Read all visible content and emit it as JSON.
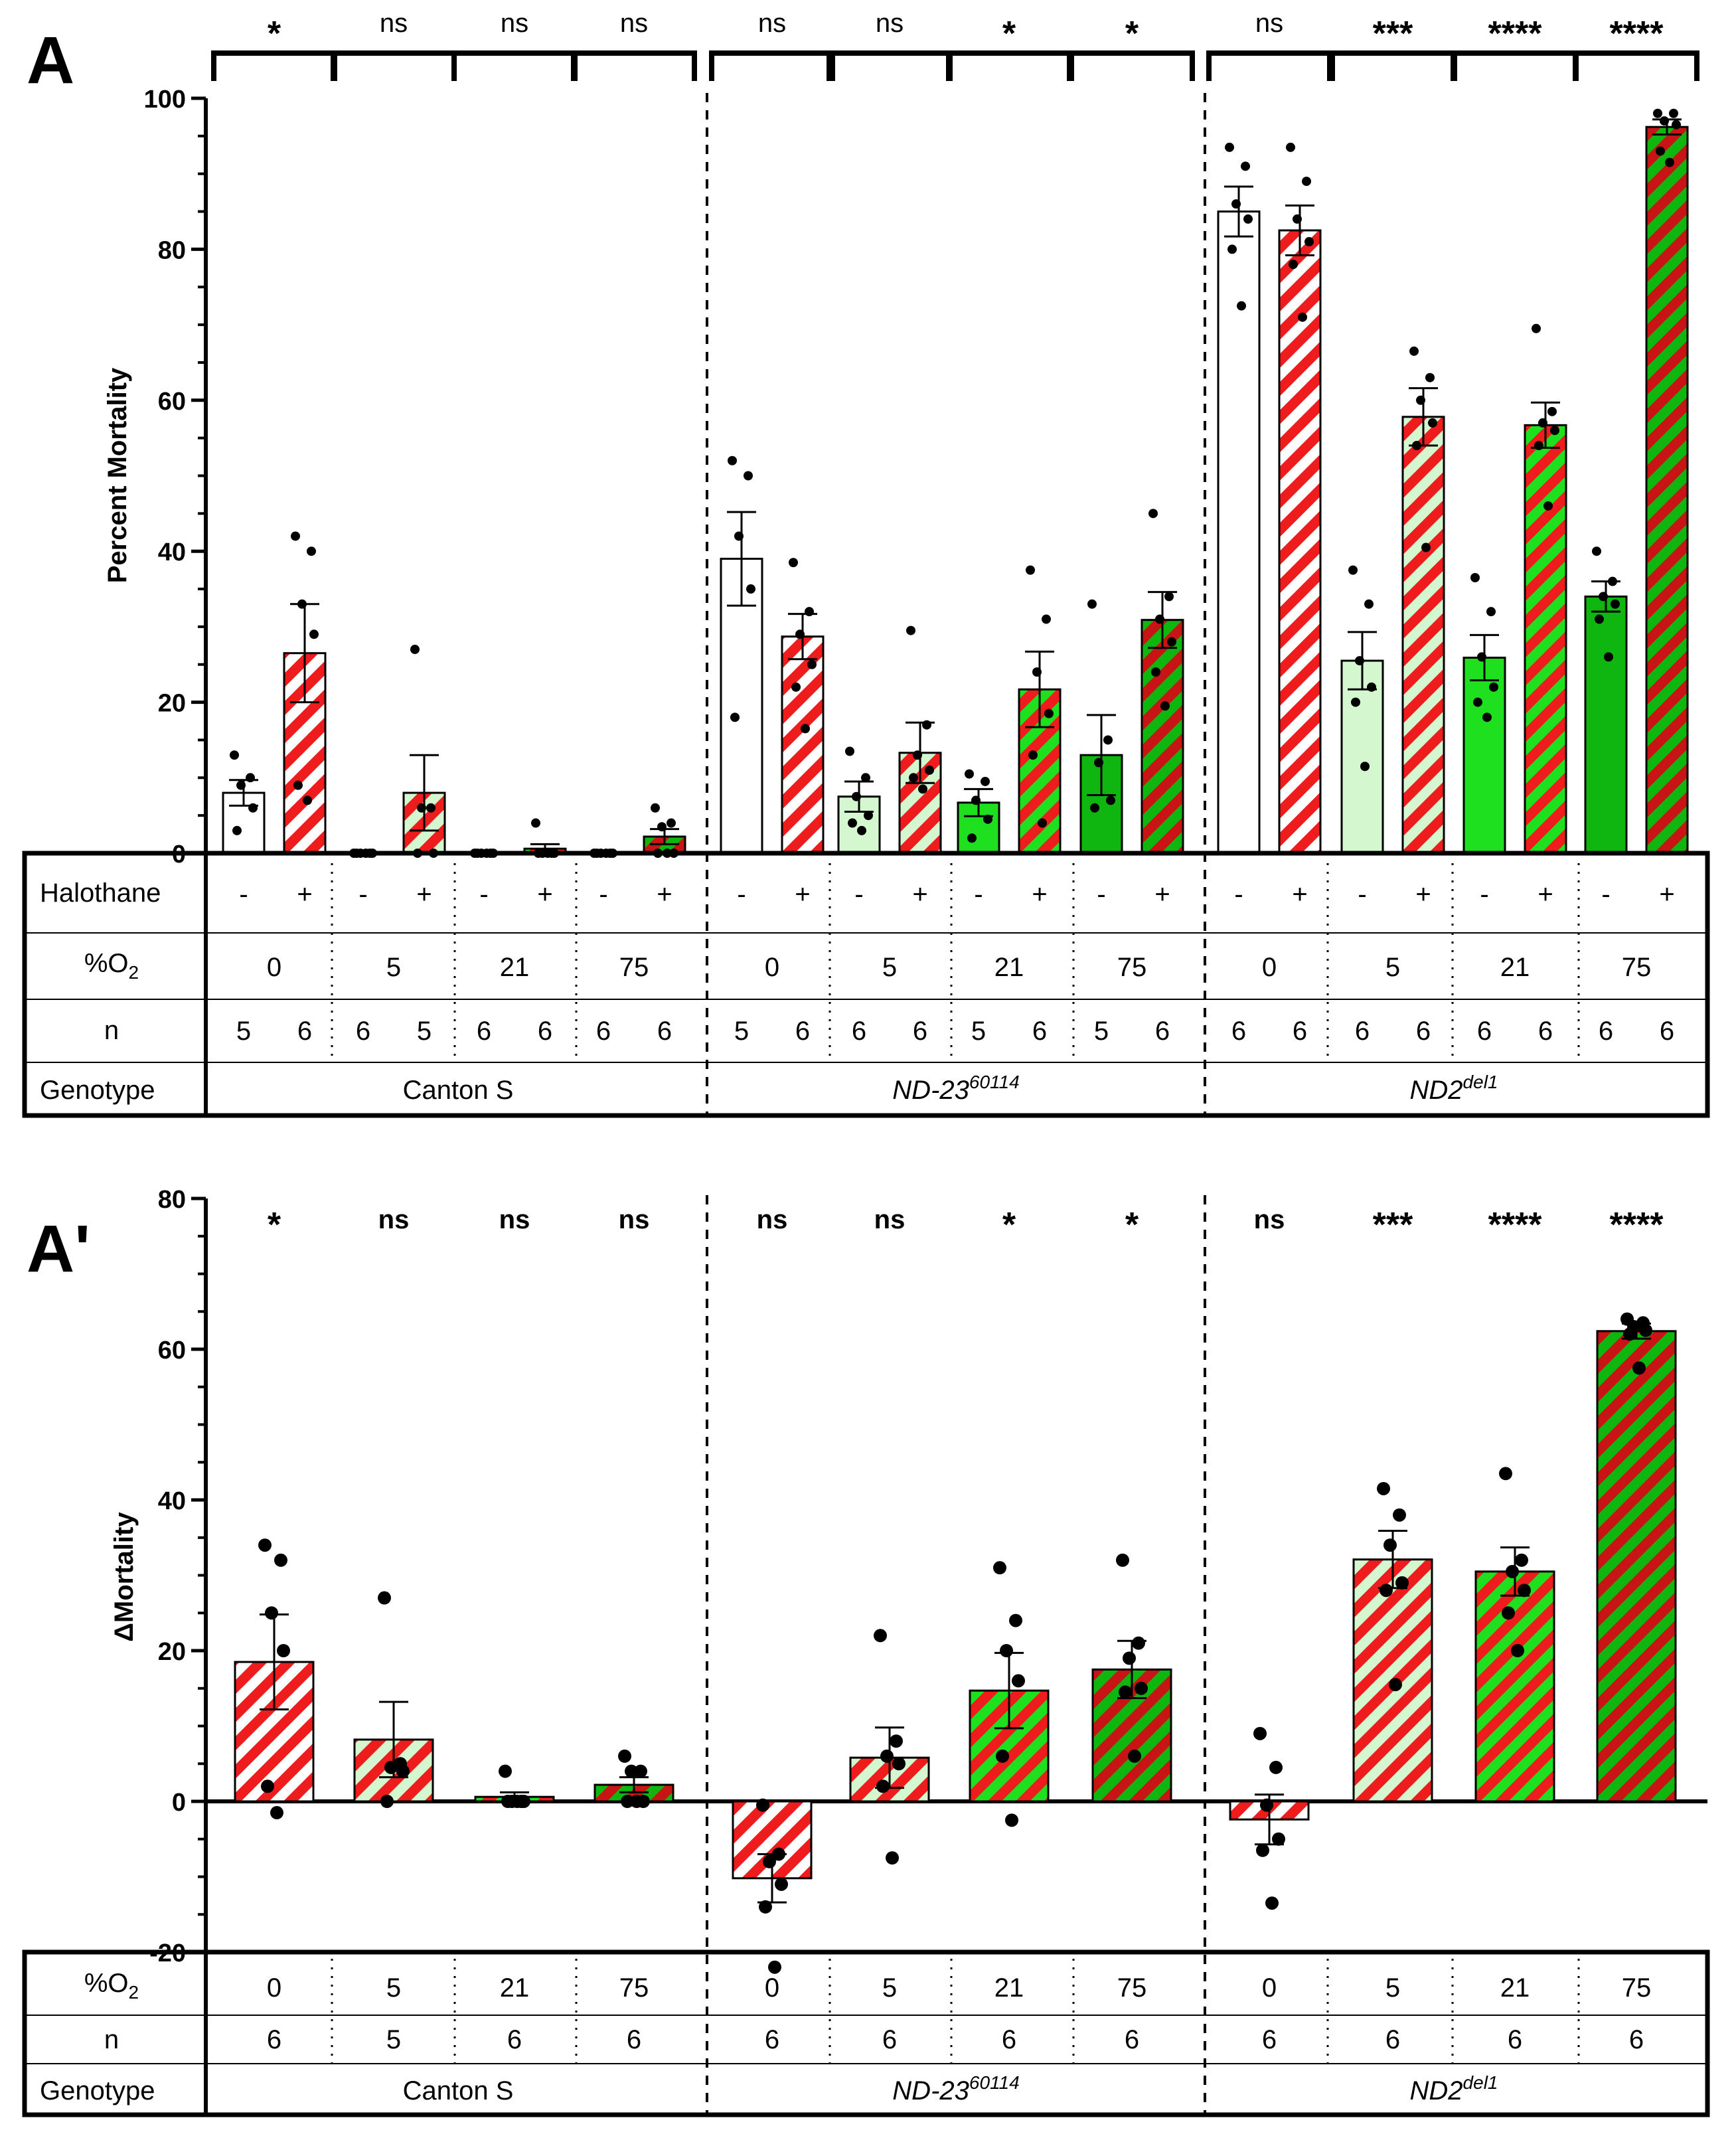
{
  "colors": {
    "red": "#ee1c1c",
    "white": "#ffffff",
    "pale_green": "#d4f7cf",
    "lime": "#1ee01e",
    "green": "#0fb60f",
    "dark_green": "#0a7d0a",
    "dark_red": "#c81414",
    "black": "#000000"
  },
  "chart_data": [
    {
      "panel": "A",
      "type": "bar",
      "ylabel": "Percent Mortality",
      "ylim": [
        0,
        100
      ],
      "yticks": [
        0,
        20,
        40,
        60,
        80,
        100
      ],
      "table": {
        "row_labels": [
          "Halothane",
          "%O2",
          "n",
          "Genotype"
        ],
        "genotypes": [
          "Canton S",
          "ND-23",
          "ND2"
        ],
        "genotype_superscripts": [
          "",
          "60114",
          "del1"
        ],
        "o2_levels": [
          "0",
          "5",
          "21",
          "75",
          "0",
          "5",
          "21",
          "75",
          "0",
          "5",
          "21",
          "75"
        ],
        "halothane": [
          "-",
          "+"
        ]
      },
      "groups": [
        {
          "genotype": "Canton S",
          "o2": "0",
          "sig": "*",
          "minus": {
            "value": 8.0,
            "sem": 1.7,
            "n": "5",
            "points": [
              13.0,
              10.0,
              9.0,
              6.0,
              3.0
            ]
          },
          "plus": {
            "value": 26.5,
            "sem": 6.5,
            "n": "6",
            "points": [
              42.0,
              40.0,
              33.0,
              29.0,
              9.0,
              7.0
            ]
          }
        },
        {
          "genotype": "Canton S",
          "o2": "5",
          "sig": "ns",
          "minus": {
            "value": 0.0,
            "sem": 0.0,
            "n": "6",
            "points": [
              0,
              0,
              0,
              0,
              0,
              0
            ]
          },
          "plus": {
            "value": 8.0,
            "sem": 5.0,
            "n": "5",
            "points": [
              27.0,
              6.0,
              6.0,
              0.0,
              0.0
            ]
          }
        },
        {
          "genotype": "Canton S",
          "o2": "21",
          "sig": "ns",
          "minus": {
            "value": 0.0,
            "sem": 0.0,
            "n": "6",
            "points": [
              0,
              0,
              0,
              0,
              0,
              0
            ]
          },
          "plus": {
            "value": 0.6,
            "sem": 0.6,
            "n": "6",
            "points": [
              4.0,
              0.0,
              0.0,
              0.0,
              0.0,
              0.0
            ]
          }
        },
        {
          "genotype": "Canton S",
          "o2": "75",
          "sig": "ns",
          "minus": {
            "value": 0.0,
            "sem": 0.0,
            "n": "6",
            "points": [
              0,
              0,
              0,
              0,
              0,
              0
            ]
          },
          "plus": {
            "value": 2.2,
            "sem": 1.0,
            "n": "6",
            "points": [
              6.0,
              4.0,
              3.5,
              0.0,
              0.0,
              0.0
            ]
          }
        },
        {
          "genotype": "ND-23",
          "o2": "0",
          "sig": "ns",
          "minus": {
            "value": 39.0,
            "sem": 6.2,
            "n": "5",
            "points": [
              52.0,
              50.0,
              42.0,
              35.0,
              18.0
            ]
          },
          "plus": {
            "value": 28.7,
            "sem": 3.0,
            "n": "6",
            "points": [
              38.5,
              32.0,
              29.0,
              25.0,
              22.0,
              16.5
            ]
          }
        },
        {
          "genotype": "ND-23",
          "o2": "5",
          "sig": "ns",
          "minus": {
            "value": 7.5,
            "sem": 2.0,
            "n": "6",
            "points": [
              13.5,
              10.0,
              7.5,
              5.0,
              4.0,
              3.0
            ]
          },
          "plus": {
            "value": 13.3,
            "sem": 4.0,
            "n": "6",
            "points": [
              29.5,
              17.0,
              13.0,
              11.0,
              10.0,
              8.5
            ]
          }
        },
        {
          "genotype": "ND-23",
          "o2": "21",
          "sig": "*",
          "minus": {
            "value": 6.7,
            "sem": 1.8,
            "n": "5",
            "points": [
              10.5,
              9.5,
              7.0,
              4.5,
              2.0
            ]
          },
          "plus": {
            "value": 21.7,
            "sem": 5.0,
            "n": "6",
            "points": [
              37.5,
              31.0,
              24.0,
              18.5,
              13.0,
              4.0
            ]
          }
        },
        {
          "genotype": "ND-23",
          "o2": "75",
          "sig": "*",
          "minus": {
            "value": 13.0,
            "sem": 5.3,
            "n": "5",
            "points": [
              33.0,
              15.0,
              12.0,
              7.0,
              6.0
            ]
          },
          "plus": {
            "value": 30.9,
            "sem": 3.7,
            "n": "6",
            "points": [
              45.0,
              34.0,
              31.0,
              28.0,
              24.0,
              19.5
            ]
          }
        },
        {
          "genotype": "ND2",
          "o2": "0",
          "sig": "ns",
          "minus": {
            "value": 85.0,
            "sem": 3.3,
            "n": "6",
            "points": [
              93.5,
              91.0,
              86.0,
              84.0,
              80.0,
              72.5
            ]
          },
          "plus": {
            "value": 82.5,
            "sem": 3.3,
            "n": "6",
            "points": [
              93.5,
              89.0,
              84.0,
              81.0,
              78.0,
              71.0
            ]
          }
        },
        {
          "genotype": "ND2",
          "o2": "5",
          "sig": "***",
          "minus": {
            "value": 25.5,
            "sem": 3.8,
            "n": "6",
            "points": [
              37.5,
              33.0,
              25.5,
              22.0,
              20.0,
              11.5
            ]
          },
          "plus": {
            "value": 57.8,
            "sem": 3.8,
            "n": "6",
            "points": [
              66.5,
              63.0,
              60.0,
              57.0,
              54.0,
              40.5
            ]
          }
        },
        {
          "genotype": "ND2",
          "o2": "21",
          "sig": "****",
          "minus": {
            "value": 25.9,
            "sem": 3.0,
            "n": "6",
            "points": [
              36.5,
              32.0,
              26.0,
              22.0,
              20.0,
              18.0
            ]
          },
          "plus": {
            "value": 56.7,
            "sem": 3.0,
            "n": "6",
            "points": [
              69.5,
              58.5,
              57.0,
              56.0,
              54.0,
              46.0
            ]
          }
        },
        {
          "genotype": "ND2",
          "o2": "75",
          "sig": "****",
          "minus": {
            "value": 34.0,
            "sem": 2.0,
            "n": "6",
            "points": [
              40.0,
              36.0,
              34.0,
              33.0,
              31.0,
              26.0
            ]
          },
          "plus": {
            "value": 96.2,
            "sem": 1.0,
            "n": "6",
            "points": [
              98.0,
              98.0,
              97.0,
              96.5,
              93.0,
              91.5
            ]
          }
        }
      ]
    },
    {
      "panel": "A'",
      "type": "bar",
      "ylabel": "ΔMortality",
      "ylim": [
        -20,
        80
      ],
      "yticks": [
        -20,
        0,
        20,
        40,
        60,
        80
      ],
      "table": {
        "row_labels": [
          "%O2",
          "n",
          "Genotype"
        ],
        "genotypes": [
          "Canton S",
          "ND-23",
          "ND2"
        ],
        "genotype_superscripts": [
          "",
          "60114",
          "del1"
        ]
      },
      "groups": [
        {
          "genotype": "Canton S",
          "o2": "0",
          "n": "6",
          "sig": "*",
          "value": 18.5,
          "sem": 6.3,
          "points": [
            34.0,
            32.0,
            25.0,
            20.0,
            2.0,
            -1.5
          ]
        },
        {
          "genotype": "Canton S",
          "o2": "5",
          "n": "5",
          "sig": "ns",
          "value": 8.2,
          "sem": 5.0,
          "points": [
            27.0,
            5.0,
            4.5,
            4.0,
            0.0
          ]
        },
        {
          "genotype": "Canton S",
          "o2": "21",
          "n": "6",
          "sig": "ns",
          "value": 0.6,
          "sem": 0.6,
          "points": [
            4.0,
            0.0,
            0.0,
            0.0,
            0.0,
            0.0
          ]
        },
        {
          "genotype": "Canton S",
          "o2": "75",
          "n": "6",
          "sig": "ns",
          "value": 2.2,
          "sem": 1.0,
          "points": [
            6.0,
            4.0,
            4.0,
            0.0,
            0.0,
            0.0
          ]
        },
        {
          "genotype": "ND-23",
          "o2": "0",
          "n": "6",
          "sig": "ns",
          "value": -10.2,
          "sem": 3.2,
          "points": [
            -0.5,
            -7.0,
            -8.0,
            -11.0,
            -14.0,
            -22.0
          ]
        },
        {
          "genotype": "ND-23",
          "o2": "5",
          "n": "6",
          "sig": "ns",
          "value": 5.8,
          "sem": 4.0,
          "points": [
            22.0,
            8.0,
            6.0,
            5.0,
            2.0,
            -7.5
          ]
        },
        {
          "genotype": "ND-23",
          "o2": "21",
          "n": "6",
          "sig": "*",
          "value": 14.7,
          "sem": 5.0,
          "points": [
            31.0,
            24.0,
            20.0,
            16.0,
            6.0,
            -2.5
          ]
        },
        {
          "genotype": "ND-23",
          "o2": "75",
          "n": "6",
          "sig": "*",
          "value": 17.5,
          "sem": 3.8,
          "points": [
            32.0,
            21.0,
            19.0,
            15.0,
            14.5,
            6.0
          ]
        },
        {
          "genotype": "ND2",
          "o2": "0",
          "n": "6",
          "sig": "ns",
          "value": -2.4,
          "sem": 3.3,
          "points": [
            9.0,
            4.5,
            -0.5,
            -5.0,
            -6.5,
            -13.5
          ]
        },
        {
          "genotype": "ND2",
          "o2": "5",
          "n": "6",
          "sig": "***",
          "value": 32.1,
          "sem": 3.8,
          "points": [
            41.5,
            38.0,
            34.0,
            29.0,
            28.0,
            15.5
          ]
        },
        {
          "genotype": "ND2",
          "o2": "21",
          "n": "6",
          "sig": "****",
          "value": 30.5,
          "sem": 3.2,
          "points": [
            43.5,
            32.0,
            30.5,
            28.0,
            25.0,
            20.0
          ]
        },
        {
          "genotype": "ND2",
          "o2": "75",
          "n": "6",
          "sig": "****",
          "value": 62.4,
          "sem": 1.0,
          "points": [
            64.0,
            63.5,
            63.0,
            62.5,
            62.0,
            57.5
          ]
        }
      ]
    }
  ],
  "labels": {
    "panel_a": "A",
    "panel_a_prime": "A'",
    "halothane_row": "Halothane",
    "o2_row_prefix": "%O",
    "o2_row_sub": "2",
    "n_row": "n",
    "genotype_row": "Genotype"
  }
}
